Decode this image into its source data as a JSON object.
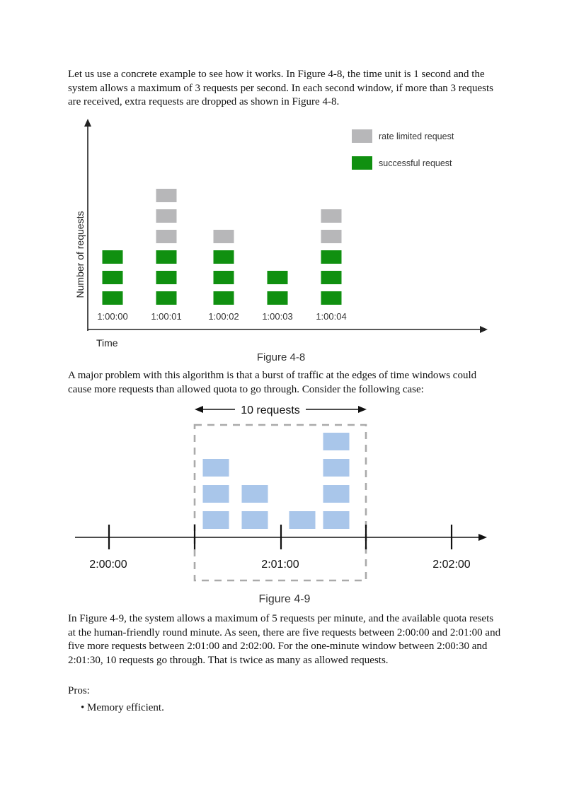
{
  "text": {
    "para1": "Let us use a concrete example to see how it works. In Figure 4-8, the time unit is 1 second and the system allows a maximum of 3 requests per second. In each second window, if more than 3 requests are received, extra requests are dropped as shown in Figure 4-8.",
    "para2": "A major problem with this algorithm is that a burst of traffic at the edges of time windows could cause more requests than allowed quota to go through. Consider the following case:",
    "para3": "In Figure 4-9, the system allows a maximum of 5 requests per minute, and the available quota resets at the human-friendly round minute. As seen, there are five requests between 2:00:00 and 2:01:00 and five more requests between 2:01:00 and 2:02:00. For the one-minute window between 2:00:30 and 2:01:30, 10 requests go through. That is twice as many as allowed requests.",
    "pros_label": "Pros:",
    "pros_item": "• Memory efficient."
  },
  "figure48": {
    "caption": "Figure 4-8",
    "ylabel": "Number of requests",
    "xlabel": "Time",
    "legend": {
      "rate_limited": "rate limited request",
      "successful": "successful request"
    },
    "colors": {
      "rate_limited": "#b7b7b9",
      "successful": "#109010"
    },
    "chart_data": {
      "type": "bar",
      "categories": [
        "1:00:00",
        "1:00:01",
        "1:00:02",
        "1:00:03",
        "1:00:04"
      ],
      "series": [
        {
          "name": "successful request",
          "values": [
            3,
            3,
            3,
            2,
            3
          ]
        },
        {
          "name": "rate limited request",
          "values": [
            0,
            3,
            1,
            0,
            2
          ]
        }
      ]
    }
  },
  "figure49": {
    "caption": "Figure 4-9",
    "window_label": "10 requests",
    "tick_labels": [
      "2:00:00",
      "2:01:00",
      "2:02:00"
    ],
    "color": "#a9c6ea",
    "request_stacks": [
      3,
      2,
      1,
      4
    ]
  }
}
